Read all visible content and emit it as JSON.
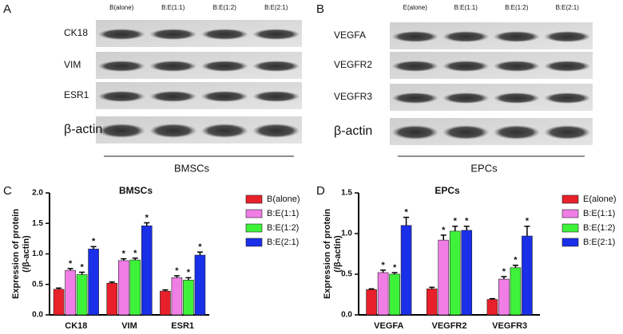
{
  "blots": [
    {
      "panel": "A",
      "columns": [
        "B(alone)",
        "B:E(1:1)",
        "B:E(1:2)",
        "B:E(2:1)"
      ],
      "rows": [
        "CK18",
        "VIM",
        "ESR1",
        "β-actin"
      ],
      "caption": "BMSCs"
    },
    {
      "panel": "B",
      "columns": [
        "E(alone)",
        "B:E(1:1)",
        "B:E(1:2)",
        "B:E(2:1)"
      ],
      "rows": [
        "VEGFA",
        "VEGFR2",
        "VEGFR3",
        "β-actin"
      ],
      "caption": "EPCs"
    }
  ],
  "chart_data": [
    {
      "type": "bar",
      "panel": "C",
      "title": "BMSCs",
      "ylabel": [
        "Expression of protein",
        "(/β-actin)"
      ],
      "categories": [
        "CK18",
        "VIM",
        "ESR1"
      ],
      "series": [
        {
          "name": "B(alone)",
          "color": "#e8202a",
          "values": [
            0.42,
            0.52,
            0.39
          ],
          "errors": [
            0.02,
            0.02,
            0.02
          ],
          "significance": [
            null,
            null,
            null
          ]
        },
        {
          "name": "B:E(1:1)",
          "color": "#f07ee6",
          "values": [
            0.73,
            0.89,
            0.61
          ],
          "errors": [
            0.03,
            0.03,
            0.03
          ],
          "significance": [
            "*",
            "*",
            "*"
          ]
        },
        {
          "name": "B:E(1:2)",
          "color": "#3ef23a",
          "values": [
            0.66,
            0.9,
            0.57
          ],
          "errors": [
            0.04,
            0.03,
            0.04
          ],
          "significance": [
            "*",
            "*",
            "*"
          ]
        },
        {
          "name": "B:E(2:1)",
          "color": "#1a2fe8",
          "values": [
            1.08,
            1.46,
            0.98
          ],
          "errors": [
            0.04,
            0.05,
            0.05
          ],
          "significance": [
            "*",
            "*",
            "*"
          ]
        }
      ],
      "ylim": [
        0,
        2.0
      ],
      "yticks": [
        {
          "value": 0,
          "label": "0.0"
        },
        {
          "value": 0.5,
          "label": "0.5"
        },
        {
          "value": 1.0,
          "label": "1.0"
        },
        {
          "value": 1.5,
          "label": "1.5"
        },
        {
          "value": 2.0,
          "label": "2.0"
        }
      ]
    },
    {
      "type": "bar",
      "panel": "D",
      "title": "EPCs",
      "ylabel": [
        "Expression of protein",
        "(/β-actin)"
      ],
      "categories": [
        "VEGFA",
        "VEGFR2",
        "VEGFR3"
      ],
      "series": [
        {
          "name": "E(alone)",
          "color": "#e8202a",
          "values": [
            0.31,
            0.32,
            0.19
          ],
          "errors": [
            0.01,
            0.02,
            0.01
          ],
          "significance": [
            null,
            null,
            null
          ]
        },
        {
          "name": "B:E(1:1)",
          "color": "#f07ee6",
          "values": [
            0.52,
            0.92,
            0.44
          ],
          "errors": [
            0.03,
            0.06,
            0.03
          ],
          "significance": [
            "*",
            "*",
            "*"
          ]
        },
        {
          "name": "B:E(1:2)",
          "color": "#3ef23a",
          "values": [
            0.5,
            1.03,
            0.58
          ],
          "errors": [
            0.02,
            0.06,
            0.03
          ],
          "significance": [
            "*",
            "*",
            "*"
          ]
        },
        {
          "name": "B:E(2:1)",
          "color": "#1a2fe8",
          "values": [
            1.1,
            1.04,
            0.97
          ],
          "errors": [
            0.1,
            0.05,
            0.12
          ],
          "significance": [
            "*",
            "*",
            "*"
          ]
        }
      ],
      "ylim": [
        0,
        1.5
      ],
      "yticks": [
        {
          "value": 0,
          "label": "0.0"
        },
        {
          "value": 0.5,
          "label": "0.5"
        },
        {
          "value": 1.0,
          "label": "1.0"
        },
        {
          "value": 1.5,
          "label": "1.5"
        }
      ]
    }
  ]
}
